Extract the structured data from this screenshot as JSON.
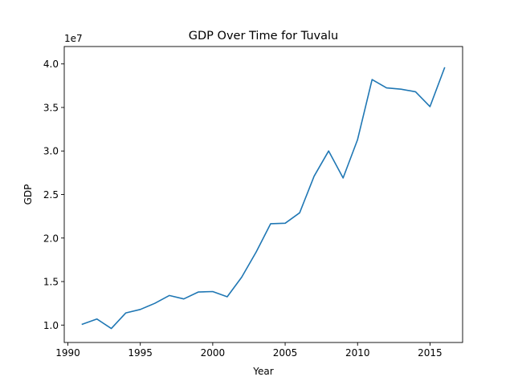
{
  "chart_data": {
    "type": "line",
    "title": "GDP Over Time for Tuvalu",
    "xlabel": "Year",
    "ylabel": "GDP",
    "y_offset_label": "1e7",
    "xlim": [
      1989.75,
      2017.25
    ],
    "ylim": [
      0.8,
      4.2
    ],
    "x_ticks": [
      1990,
      1995,
      2000,
      2005,
      2010,
      2015
    ],
    "x_tick_labels": [
      "1990",
      "1995",
      "2000",
      "2005",
      "2010",
      "2015"
    ],
    "y_ticks": [
      1.0,
      1.5,
      2.0,
      2.5,
      3.0,
      3.5,
      4.0
    ],
    "y_tick_labels": [
      "1.0",
      "1.5",
      "2.0",
      "2.5",
      "3.0",
      "3.5",
      "4.0"
    ],
    "grid": false,
    "series": [
      {
        "color": "#1f77b4",
        "x": [
          1991,
          1992,
          1993,
          1994,
          1995,
          1996,
          1997,
          1998,
          1999,
          2000,
          2001,
          2002,
          2003,
          2004,
          2005,
          2006,
          2007,
          2008,
          2009,
          2010,
          2011,
          2012,
          2013,
          2014,
          2015,
          2016
        ],
        "y": [
          1.01,
          1.07,
          0.96,
          1.14,
          1.18,
          1.25,
          1.34,
          1.3,
          1.38,
          1.385,
          1.325,
          1.55,
          1.84,
          2.165,
          2.17,
          2.29,
          2.71,
          3.0,
          2.69,
          3.13,
          3.82,
          3.725,
          3.71,
          3.68,
          3.51,
          3.955
        ]
      }
    ]
  }
}
